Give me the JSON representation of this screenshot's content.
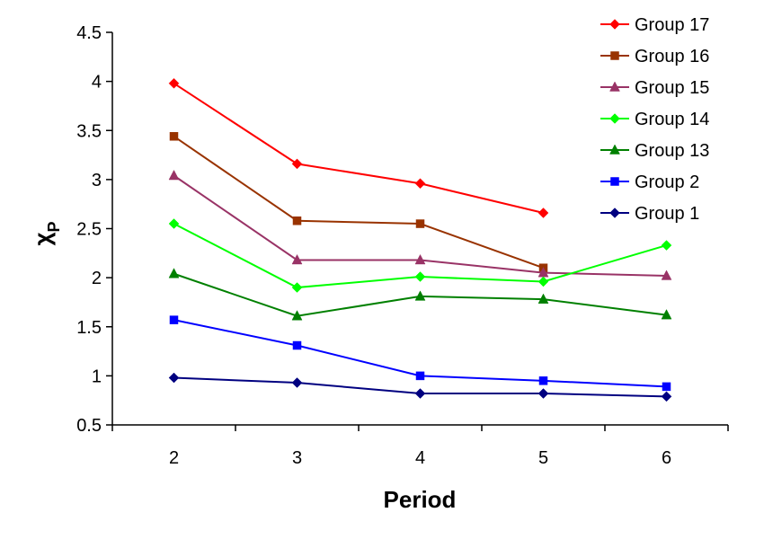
{
  "chart_data": {
    "type": "line",
    "title": "",
    "xlabel": "Period",
    "ylabel": {
      "main": "χ",
      "sub": "P"
    },
    "categories": [
      "2",
      "3",
      "4",
      "5",
      "6"
    ],
    "ylim": [
      0.5,
      4.5
    ],
    "yticks": [
      "0.5",
      "1",
      "1.5",
      "2",
      "2.5",
      "3",
      "3.5",
      "4",
      "4.5"
    ],
    "grid": false,
    "legend_position": "top-right",
    "series": [
      {
        "name": "Group 17",
        "color": "#ff0000",
        "marker": "diamond",
        "values": [
          3.98,
          3.16,
          2.96,
          2.66,
          null
        ]
      },
      {
        "name": "Group 16",
        "color": "#993300",
        "marker": "square",
        "values": [
          3.44,
          2.58,
          2.55,
          2.1,
          null
        ]
      },
      {
        "name": "Group 15",
        "color": "#993366",
        "marker": "triangle",
        "values": [
          3.04,
          2.18,
          2.18,
          2.05,
          2.02
        ]
      },
      {
        "name": "Group 14",
        "color": "#00ff00",
        "marker": "diamond",
        "values": [
          2.55,
          1.9,
          2.01,
          1.96,
          2.33
        ]
      },
      {
        "name": "Group 13",
        "color": "#008000",
        "marker": "triangle",
        "values": [
          2.04,
          1.61,
          1.81,
          1.78,
          1.62
        ]
      },
      {
        "name": "Group 2",
        "color": "#0000ff",
        "marker": "square",
        "values": [
          1.57,
          1.31,
          1.0,
          0.95,
          0.89
        ]
      },
      {
        "name": "Group 1",
        "color": "#000080",
        "marker": "diamond",
        "values": [
          0.98,
          0.93,
          0.82,
          0.82,
          0.79
        ]
      }
    ]
  }
}
